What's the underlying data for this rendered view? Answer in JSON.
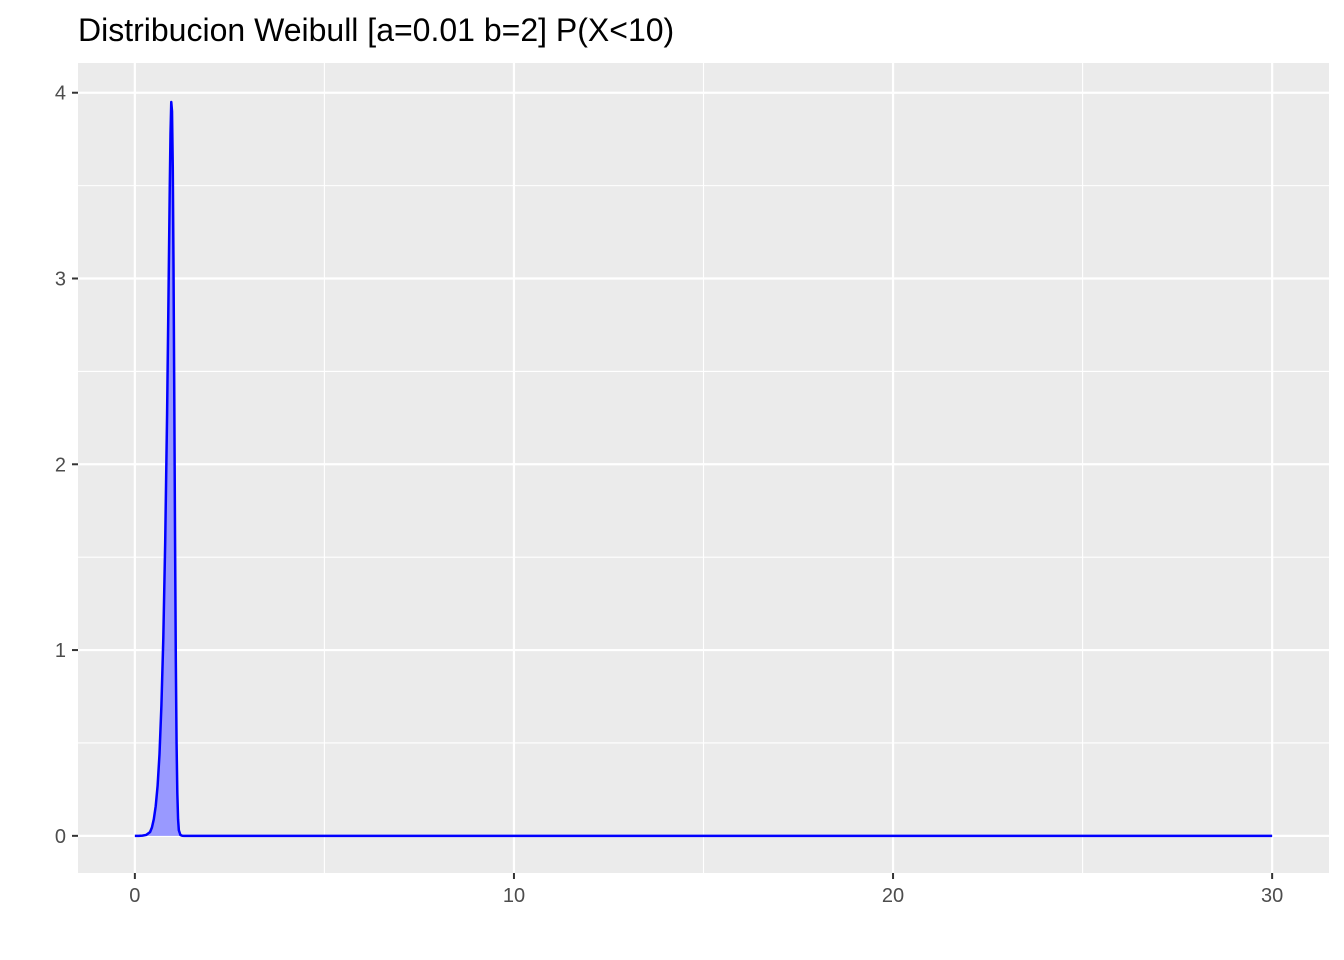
{
  "chart_data": {
    "type": "area",
    "title": "Distribucion Weibull [a=0.01 b=2]    P(X<10)",
    "xlabel": "",
    "ylabel": "",
    "xlim": [
      -1.5,
      31.5
    ],
    "ylim": [
      -0.2,
      4.16
    ],
    "x_ticks": [
      0,
      10,
      20,
      30
    ],
    "x_tick_labels": [
      "0",
      "10",
      "20",
      "30"
    ],
    "y_ticks": [
      0,
      1,
      2,
      3,
      4
    ],
    "y_tick_labels": [
      "0",
      "1",
      "2",
      "3",
      "4"
    ],
    "x_minor_ticks": [
      5,
      15,
      25
    ],
    "y_minor_ticks": [
      0.5,
      1.5,
      2.5,
      3.5
    ],
    "grid": true,
    "legend": "none",
    "background": "#ebebeb",
    "grid_color": "#ffffff",
    "line_color": "#0000ff",
    "fill_color": "#9999ff",
    "shaded_region": {
      "from": 0,
      "to": 10,
      "label": "P(X<10)"
    },
    "series": [
      {
        "x": [
          0,
          0.1,
          0.2,
          0.3,
          0.4,
          0.45,
          0.5,
          0.55,
          0.6,
          0.65,
          0.7,
          0.75,
          0.8,
          0.85,
          0.88,
          0.9,
          0.92,
          0.94,
          0.96,
          0.98,
          1.0,
          1.02,
          1.04,
          1.06,
          1.08,
          1.1,
          1.12,
          1.14,
          1.16,
          1.2,
          1.25,
          1.3,
          1.5,
          2,
          5,
          10,
          15,
          20,
          25,
          30
        ],
        "y": [
          0,
          0,
          0.001,
          0.005,
          0.02,
          0.045,
          0.09,
          0.16,
          0.27,
          0.44,
          0.7,
          1.06,
          1.58,
          2.27,
          2.78,
          3.13,
          3.48,
          3.78,
          3.95,
          3.9,
          3.6,
          3.05,
          2.35,
          1.6,
          0.95,
          0.5,
          0.23,
          0.09,
          0.03,
          0.005,
          0.0006,
          0,
          0,
          0,
          0,
          0,
          0,
          0,
          0,
          0
        ]
      }
    ]
  }
}
